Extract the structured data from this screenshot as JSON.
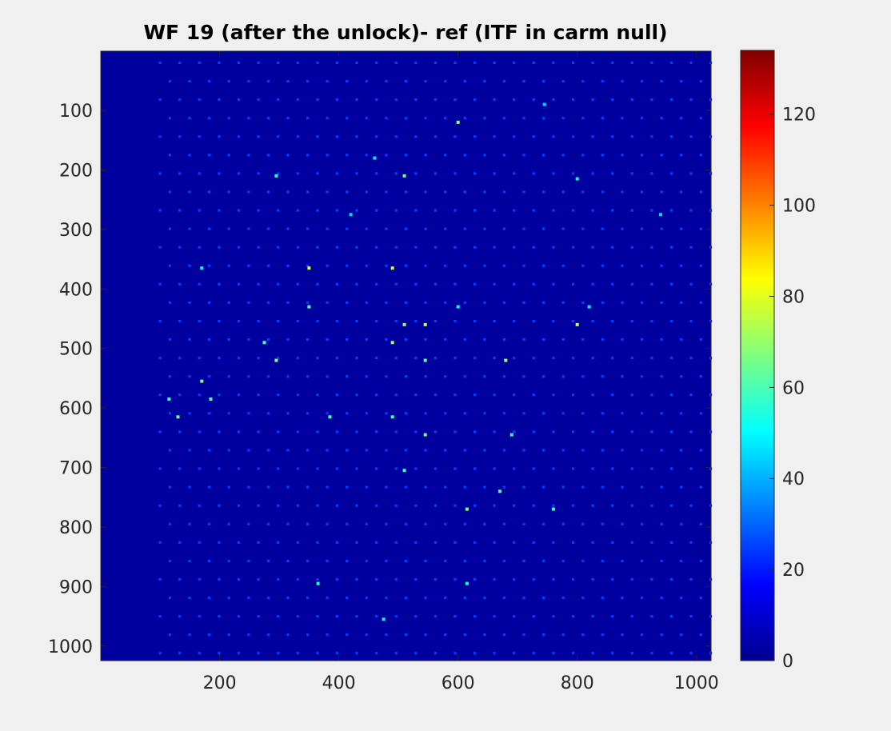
{
  "chart_data": {
    "type": "heatmap",
    "title": "WF 19 (after the unlock)- ref (ITF in carm null)",
    "xlabel": "",
    "ylabel": "",
    "xlim": [
      1,
      1024
    ],
    "ylim": [
      1,
      1024
    ],
    "y_direction": "reverse",
    "x_ticks": [
      200,
      400,
      600,
      800,
      1000
    ],
    "y_ticks": [
      100,
      200,
      300,
      400,
      500,
      600,
      700,
      800,
      900,
      1000
    ],
    "colormap": "jet",
    "clim": [
      0,
      134
    ],
    "colorbar_ticks": [
      0,
      20,
      40,
      60,
      80,
      100,
      120
    ],
    "background_value": 4,
    "spot_grid": {
      "x_start": 100,
      "x_end": 1024,
      "x_step": 33,
      "y_start": 20,
      "y_end": 1024,
      "y_step": 31,
      "typical_value": 25
    },
    "bright_spots": [
      {
        "x": 600,
        "y": 120,
        "value": 70
      },
      {
        "x": 510,
        "y": 210,
        "value": 65
      },
      {
        "x": 295,
        "y": 210,
        "value": 55
      },
      {
        "x": 350,
        "y": 365,
        "value": 80
      },
      {
        "x": 490,
        "y": 365,
        "value": 78
      },
      {
        "x": 350,
        "y": 430,
        "value": 60
      },
      {
        "x": 510,
        "y": 460,
        "value": 70
      },
      {
        "x": 545,
        "y": 460,
        "value": 75
      },
      {
        "x": 800,
        "y": 460,
        "value": 75
      },
      {
        "x": 490,
        "y": 490,
        "value": 72
      },
      {
        "x": 275,
        "y": 490,
        "value": 60
      },
      {
        "x": 295,
        "y": 520,
        "value": 68
      },
      {
        "x": 545,
        "y": 520,
        "value": 62
      },
      {
        "x": 680,
        "y": 520,
        "value": 72
      },
      {
        "x": 170,
        "y": 555,
        "value": 68
      },
      {
        "x": 115,
        "y": 585,
        "value": 55
      },
      {
        "x": 185,
        "y": 585,
        "value": 62
      },
      {
        "x": 130,
        "y": 615,
        "value": 65
      },
      {
        "x": 385,
        "y": 615,
        "value": 60
      },
      {
        "x": 490,
        "y": 615,
        "value": 60
      },
      {
        "x": 545,
        "y": 645,
        "value": 65
      },
      {
        "x": 690,
        "y": 645,
        "value": 55
      },
      {
        "x": 510,
        "y": 705,
        "value": 58
      },
      {
        "x": 670,
        "y": 740,
        "value": 62
      },
      {
        "x": 615,
        "y": 770,
        "value": 68
      },
      {
        "x": 760,
        "y": 770,
        "value": 58
      },
      {
        "x": 365,
        "y": 895,
        "value": 55
      },
      {
        "x": 615,
        "y": 895,
        "value": 52
      },
      {
        "x": 475,
        "y": 955,
        "value": 50
      },
      {
        "x": 460,
        "y": 180,
        "value": 48
      },
      {
        "x": 745,
        "y": 90,
        "value": 45
      },
      {
        "x": 800,
        "y": 215,
        "value": 50
      },
      {
        "x": 940,
        "y": 275,
        "value": 45
      },
      {
        "x": 170,
        "y": 365,
        "value": 50
      },
      {
        "x": 820,
        "y": 430,
        "value": 48
      },
      {
        "x": 600,
        "y": 430,
        "value": 50
      },
      {
        "x": 420,
        "y": 275,
        "value": 45
      }
    ]
  }
}
